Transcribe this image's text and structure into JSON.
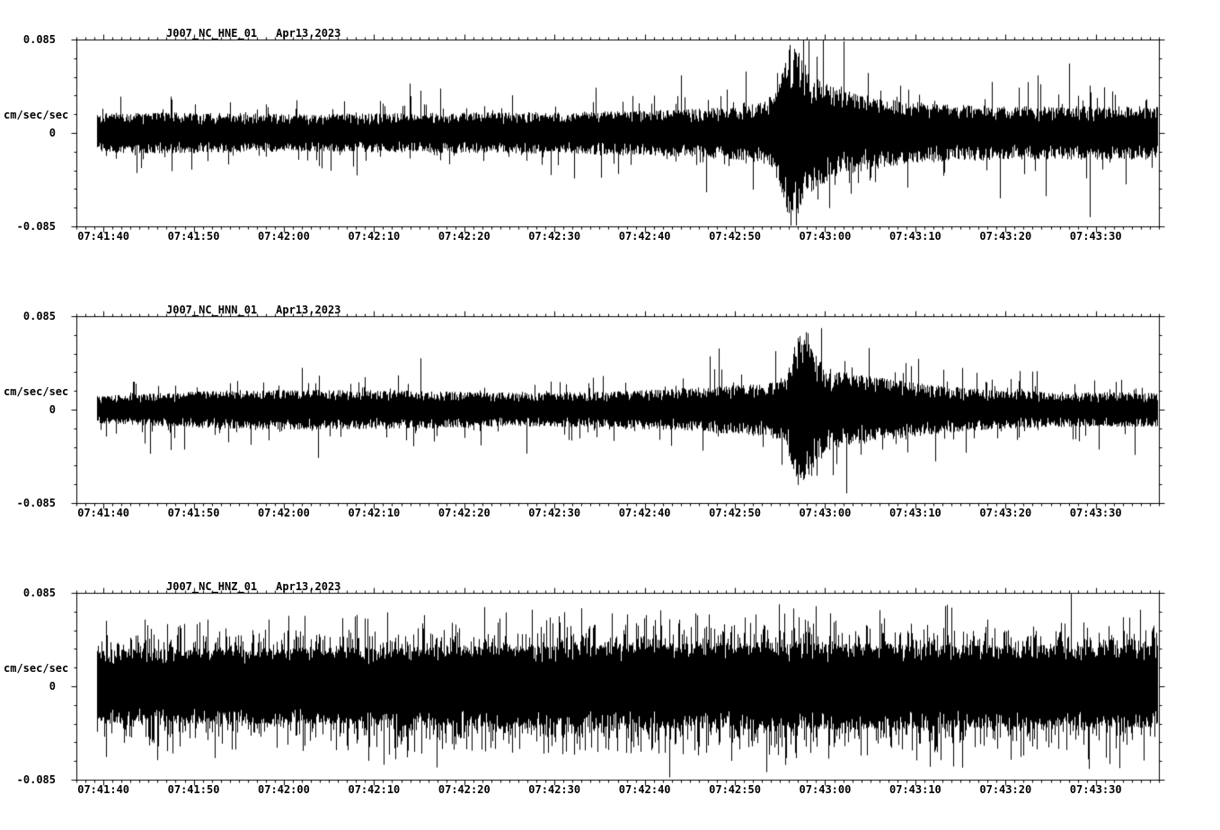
{
  "page": {
    "background": "#ffffff",
    "trace_color": "#000000"
  },
  "chart_data": [
    {
      "type": "line",
      "title": "J007_NC_HNE_01",
      "date": "Apr13,2023",
      "ylabel": "cm/sec/sec",
      "ylim": [
        -0.085,
        0.085
      ],
      "yticks": [
        0.085,
        0,
        -0.085
      ],
      "ytick_labels": [
        "0.085",
        "0",
        "-0.085"
      ],
      "xtick_labels": [
        "07:41:40",
        "07:41:50",
        "07:42:00",
        "07:42:10",
        "07:42:20",
        "07:42:30",
        "07:42:40",
        "07:42:50",
        "07:43:00",
        "07:43:10",
        "07:43:20",
        "07:43:30"
      ],
      "x_total_seconds": 120,
      "x_first_tick_offset_seconds": 3,
      "x_major_tick_seconds": 10,
      "x_minor_tick_seconds": 1,
      "grid": false,
      "legend": false,
      "event_peak_time": "07:42:58",
      "seed": 1337,
      "noise": {
        "base": 0.018,
        "floor": 0.4,
        "spike_prob": 0.05,
        "spike_min": 1.4,
        "spike_span": 2.0
      },
      "envelope": [
        [
          0,
          1.0
        ],
        [
          0.08,
          1.05
        ],
        [
          0.2,
          0.95
        ],
        [
          0.3,
          1.0
        ],
        [
          0.42,
          1.05
        ],
        [
          0.5,
          1.1
        ],
        [
          0.56,
          1.2
        ],
        [
          0.6,
          1.3
        ],
        [
          0.63,
          1.5
        ],
        [
          0.645,
          2.0
        ],
        [
          0.658,
          4.6
        ],
        [
          0.668,
          4.0
        ],
        [
          0.678,
          3.0
        ],
        [
          0.695,
          2.4
        ],
        [
          0.72,
          2.0
        ],
        [
          0.75,
          1.7
        ],
        [
          0.8,
          1.45
        ],
        [
          0.87,
          1.35
        ],
        [
          1,
          1.35
        ]
      ]
    },
    {
      "type": "line",
      "title": "J007_NC_HNN_01",
      "date": "Apr13,2023",
      "ylabel": "cm/sec/sec",
      "ylim": [
        -0.085,
        0.085
      ],
      "yticks": [
        0.085,
        0,
        -0.085
      ],
      "ytick_labels": [
        "0.085",
        "0",
        "-0.085"
      ],
      "xtick_labels": [
        "07:41:40",
        "07:41:50",
        "07:42:00",
        "07:42:10",
        "07:42:20",
        "07:42:30",
        "07:42:40",
        "07:42:50",
        "07:43:00",
        "07:43:10",
        "07:43:20",
        "07:43:30"
      ],
      "x_total_seconds": 120,
      "x_first_tick_offset_seconds": 3,
      "x_major_tick_seconds": 10,
      "x_minor_tick_seconds": 1,
      "grid": false,
      "legend": false,
      "event_peak_time": "07:42:58",
      "seed": 4242,
      "noise": {
        "base": 0.014,
        "floor": 0.4,
        "spike_prob": 0.05,
        "spike_min": 1.4,
        "spike_span": 1.8
      },
      "envelope": [
        [
          0,
          0.85
        ],
        [
          0.05,
          1.0
        ],
        [
          0.12,
          1.2
        ],
        [
          0.2,
          1.3
        ],
        [
          0.3,
          1.25
        ],
        [
          0.4,
          1.1
        ],
        [
          0.48,
          1.15
        ],
        [
          0.55,
          1.35
        ],
        [
          0.6,
          1.55
        ],
        [
          0.635,
          1.7
        ],
        [
          0.655,
          2.2
        ],
        [
          0.665,
          5.0
        ],
        [
          0.675,
          4.4
        ],
        [
          0.688,
          3.2
        ],
        [
          0.7,
          2.6
        ],
        [
          0.72,
          2.3
        ],
        [
          0.75,
          2.0
        ],
        [
          0.79,
          1.6
        ],
        [
          0.84,
          1.3
        ],
        [
          0.9,
          1.15
        ],
        [
          1,
          1.1
        ]
      ]
    },
    {
      "type": "line",
      "title": "J007_NC_HNZ_01",
      "date": "Apr13,2023",
      "ylabel": "cm/sec/sec",
      "ylim": [
        -0.085,
        0.085
      ],
      "yticks": [
        0.085,
        0,
        -0.085
      ],
      "ytick_labels": [
        "0.085",
        "0",
        "-0.085"
      ],
      "xtick_labels": [
        "07:41:40",
        "07:41:50",
        "07:42:00",
        "07:42:10",
        "07:42:20",
        "07:42:30",
        "07:42:40",
        "07:42:50",
        "07:43:00",
        "07:43:10",
        "07:43:20",
        "07:43:30"
      ],
      "x_total_seconds": 120,
      "x_first_tick_offset_seconds": 3,
      "x_major_tick_seconds": 10,
      "x_minor_tick_seconds": 1,
      "grid": false,
      "legend": false,
      "event_peak_time": "",
      "seed": 9001,
      "noise": {
        "base": 0.034,
        "floor": 0.55,
        "spike_prob": 0.3,
        "spike_min": 1.2,
        "spike_span": 1.1
      },
      "envelope": [
        [
          0,
          1.0
        ],
        [
          0.15,
          1.02
        ],
        [
          0.3,
          1.05
        ],
        [
          0.45,
          1.1
        ],
        [
          0.55,
          1.15
        ],
        [
          0.65,
          1.18
        ],
        [
          0.75,
          1.15
        ],
        [
          0.85,
          1.1
        ],
        [
          1,
          1.12
        ]
      ]
    }
  ]
}
